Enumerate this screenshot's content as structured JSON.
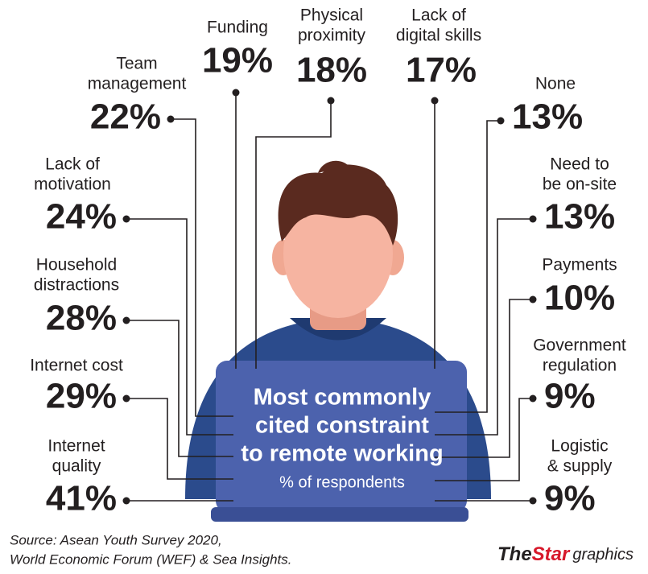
{
  "heading": {
    "lines": [
      "Most commonly",
      "cited constraint",
      "to remote working"
    ],
    "subtitle": "% of respondents"
  },
  "items": [
    {
      "label": [
        "Team",
        "management"
      ],
      "value": "22%"
    },
    {
      "label": [
        "Lack of",
        "motivation"
      ],
      "value": "24%"
    },
    {
      "label": [
        "Household",
        "distractions"
      ],
      "value": "28%"
    },
    {
      "label": [
        "Internet cost"
      ],
      "value": "29%"
    },
    {
      "label": [
        "Internet",
        "quality"
      ],
      "value": "41%"
    },
    {
      "label": [
        "Funding"
      ],
      "value": "19%"
    },
    {
      "label": [
        "Physical",
        "proximity"
      ],
      "value": "18%"
    },
    {
      "label": [
        "Lack of",
        "digital skills"
      ],
      "value": "17%"
    },
    {
      "label": [
        "None"
      ],
      "value": "13%"
    },
    {
      "label": [
        "Need to",
        "be on-site"
      ],
      "value": "13%"
    },
    {
      "label": [
        "Payments"
      ],
      "value": "10%"
    },
    {
      "label": [
        "Government",
        "regulation"
      ],
      "value": "9%"
    },
    {
      "label": [
        "Logistic",
        "& supply"
      ],
      "value": "9%"
    }
  ],
  "source": [
    "Source: Asean Youth Survey 2020,",
    "World Economic Forum (WEF) & Sea Insights."
  ],
  "logo": {
    "the": "The",
    "star": "Star",
    "suffix": "graphics"
  }
}
